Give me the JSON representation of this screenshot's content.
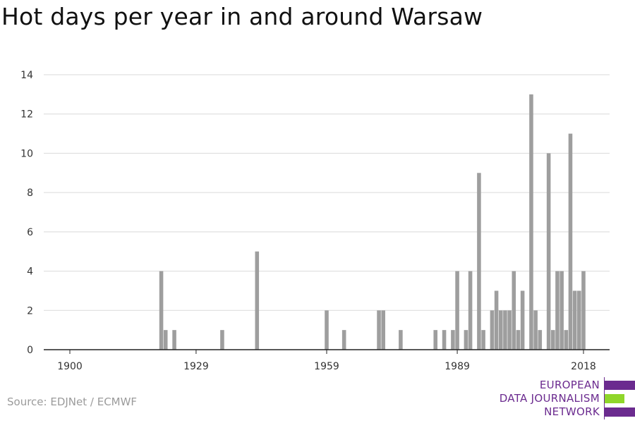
{
  "title": "Hot days per year in and around Warsaw",
  "source": "Source: EDJNet / ECMWF",
  "logo": {
    "line1": "EUROPEAN",
    "line2": "DATA JOURNALISM",
    "line3": "NETWORK",
    "colors": {
      "text": "#6b2b8f",
      "purple": "#6b2b8f",
      "green": "#8fd62a"
    }
  },
  "chart_data": {
    "type": "bar",
    "title": "Hot days per year in and around Warsaw",
    "xlabel": "",
    "ylabel": "",
    "x_ticks": [
      1900,
      1929,
      1959,
      1989,
      2018
    ],
    "xlim": [
      1894,
      2024
    ],
    "y_ticks": [
      0,
      2,
      4,
      6,
      8,
      10,
      12,
      14
    ],
    "ylim": [
      0,
      14
    ],
    "grid": true,
    "bar_color": "#9e9e9e",
    "years": [
      1921,
      1922,
      1924,
      1935,
      1943,
      1959,
      1963,
      1971,
      1972,
      1976,
      1984,
      1986,
      1988,
      1989,
      1991,
      1992,
      1994,
      1995,
      1997,
      1998,
      1999,
      2000,
      2001,
      2002,
      2003,
      2004,
      2006,
      2007,
      2008,
      2010,
      2011,
      2012,
      2013,
      2014,
      2015,
      2016,
      2017,
      2018
    ],
    "values": [
      4,
      1,
      1,
      1,
      5,
      2,
      1,
      2,
      2,
      1,
      1,
      1,
      1,
      4,
      1,
      4,
      9,
      1,
      2,
      3,
      2,
      2,
      2,
      4,
      1,
      3,
      13,
      2,
      1,
      10,
      1,
      4,
      4,
      1,
      11,
      3,
      3,
      4
    ]
  }
}
